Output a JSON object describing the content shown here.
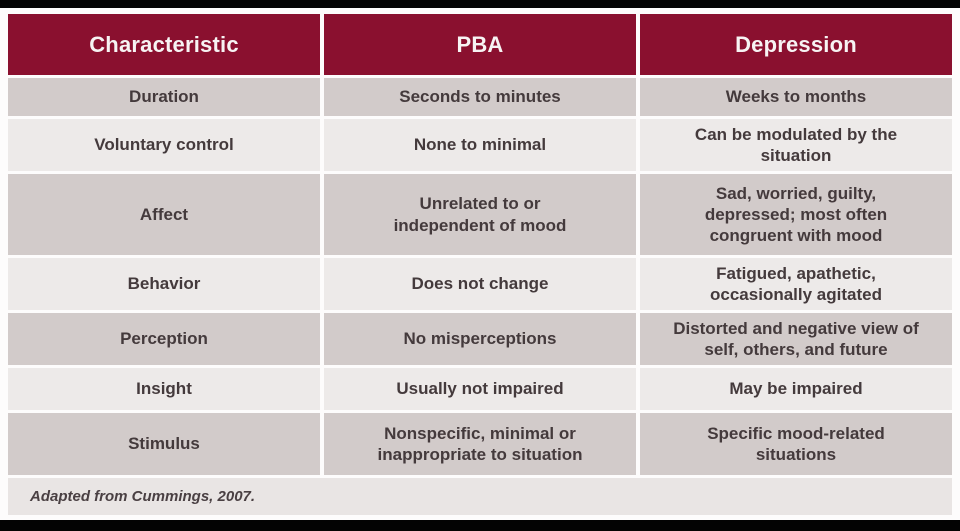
{
  "table": {
    "headers": [
      "Characteristic",
      "PBA",
      "Depression"
    ],
    "rows": [
      {
        "characteristic": "Duration",
        "pba": "Seconds to minutes",
        "depression": "Weeks to months"
      },
      {
        "characteristic": "Voluntary control",
        "pba": "None to minimal",
        "depression": "Can be modulated by the situation"
      },
      {
        "characteristic": "Affect",
        "pba": "Unrelated to or independent of mood",
        "depression": "Sad, worried, guilty, depressed; most often congruent with mood"
      },
      {
        "characteristic": "Behavior",
        "pba": "Does not change",
        "depression": "Fatigued, apathetic, occasionally agitated"
      },
      {
        "characteristic": "Perception",
        "pba": "No misperceptions",
        "depression": "Distorted and negative view of self, others, and future"
      },
      {
        "characteristic": "Insight",
        "pba": "Usually not impaired",
        "depression": "May be impaired"
      },
      {
        "characteristic": "Stimulus",
        "pba": "Nonspecific, minimal or inappropriate to situation",
        "depression": "Specific mood-related situations"
      }
    ]
  },
  "footer": {
    "note": "Adapted from Cummings, 2007."
  },
  "colors": {
    "header_bg": "#8a102f",
    "header_text": "#f7f3f3",
    "row_dark_bg": "#d2cbca",
    "row_light_bg": "#edeae9",
    "footer_bg": "#e9e5e4",
    "cell_text": "#443a3c",
    "page_bg": "#fdfcfc",
    "letterbox_bar": "#030303"
  }
}
